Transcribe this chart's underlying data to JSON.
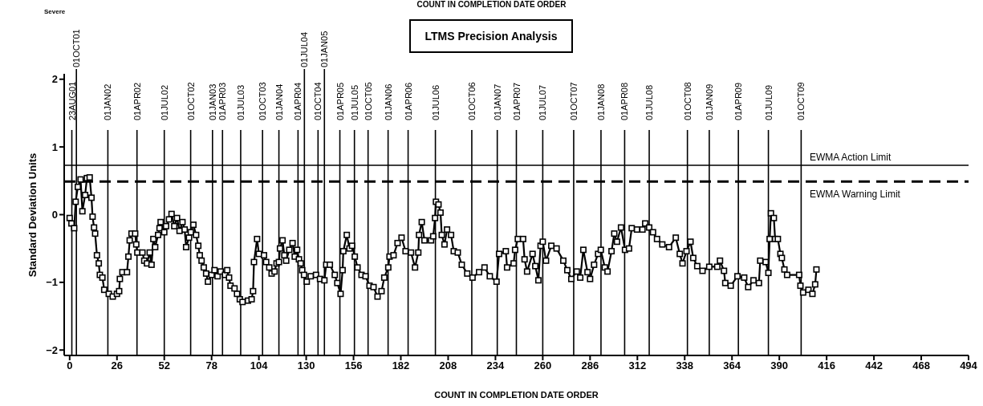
{
  "chart_data": {
    "type": "line",
    "title": "LTMS Precision Analysis",
    "xlabel": "COUNT IN COMPLETION DATE ORDER",
    "ylabel": "Standard Deviation Units",
    "annotations": [
      "Severe",
      "COUNT IN COMPLETION DATE ORDER"
    ],
    "xlim": [
      -3,
      494
    ],
    "xticks": [
      0,
      26,
      52,
      78,
      104,
      130,
      156,
      182,
      208,
      234,
      260,
      286,
      312,
      338,
      364,
      390,
      416,
      442,
      468,
      494
    ],
    "ylim": [
      -2.08,
      2.08
    ],
    "yticks": [
      -2,
      -1,
      0,
      1,
      2
    ],
    "grid": false,
    "legend": false,
    "marker": "square",
    "line_style": "solid",
    "series": [
      {
        "color": "#000000",
        "x": [
          0,
          1,
          2.5,
          3.3,
          4.5,
          6,
          7,
          8.5,
          9.5,
          11,
          12,
          12.6,
          13.4,
          14,
          15,
          16,
          16.6,
          18,
          19,
          21.5,
          23.7,
          26,
          27.2,
          27.6,
          29,
          31.5,
          32.3,
          33,
          34,
          36,
          36.6,
          37.2,
          40,
          41,
          42.5,
          44,
          45,
          46,
          47,
          48.6,
          49.4,
          50,
          52,
          53,
          54.6,
          56,
          57.5,
          59,
          60.4,
          62,
          63.2,
          64,
          65.6,
          66.6,
          68,
          69.5,
          70.7,
          71.5,
          72.5,
          73.7,
          75,
          76,
          78,
          79.6,
          81.3,
          83,
          85.4,
          86.6,
          87.6,
          88.4,
          90.6,
          92,
          93.5,
          95,
          98,
          100,
          100.8,
          101.3,
          103,
          104,
          106.8,
          108,
          109.7,
          111,
          112.6,
          113.7,
          115,
          115.6,
          117,
          118,
          119,
          120.7,
          122.5,
          123.7,
          125,
          126,
          127,
          127.8,
          128.8,
          130.3,
          132.5,
          135.4,
          137.6,
          140,
          141,
          143,
          145.7,
          147.1,
          148.9,
          150,
          150.4,
          152.3,
          153.8,
          155.2,
          156.7,
          158.2,
          160.4,
          162.6,
          164.8,
          167,
          169.2,
          171.4,
          172.9,
          175.1,
          175.8,
          178,
          180.2,
          182.4,
          184.6,
          187.6,
          189.8,
          191.6,
          192,
          193.5,
          195,
          198.6,
          199.8,
          200.8,
          201.3,
          202.7,
          203.8,
          204.5,
          206,
          207.4,
          209.6,
          211.1,
          213.3,
          215.5,
          218.5,
          221.4,
          225,
          228,
          230.9,
          234.6,
          236,
          239.7,
          240.4,
          244,
          244.8,
          246.3,
          249.2,
          250,
          251.4,
          254.4,
          255.9,
          257.6,
          258.8,
          260,
          261.8,
          264.7,
          267.6,
          271.3,
          273.5,
          275.7,
          278.7,
          280.6,
          282.3,
          284.6,
          286,
          288.2,
          290.4,
          291.9,
          294.1,
          295.6,
          297.8,
          299.3,
          300.8,
          303,
          305.2,
          307.4,
          308.9,
          311.8,
          314.8,
          316.3,
          318.5,
          320.6,
          322.8,
          325.7,
          329.4,
          333.1,
          335.3,
          336.8,
          339,
          341.2,
          342.7,
          344.9,
          347.8,
          351.5,
          355.9,
          357.4,
          359.6,
          360.3,
          363.3,
          367,
          370.7,
          372.9,
          375.8,
          378.8,
          379.5,
          382.5,
          384,
          384.7,
          385.4,
          387,
          387.7,
          389.2,
          390.6,
          391.4,
          392.8,
          394.3,
          400.9,
          401.6,
          403.1,
          406,
          408.2,
          409.7,
          410.4
        ],
        "values": [
          -0.05,
          -0.13,
          -0.2,
          0.19,
          0.41,
          0.52,
          0.05,
          0.29,
          0.54,
          0.55,
          0.25,
          -0.03,
          -0.19,
          -0.28,
          -0.6,
          -0.72,
          -0.89,
          -0.93,
          -1.11,
          -1.17,
          -1.21,
          -1.17,
          -1.13,
          -0.95,
          -0.85,
          -0.85,
          -0.62,
          -0.38,
          -0.28,
          -0.28,
          -0.44,
          -0.56,
          -0.56,
          -0.68,
          -0.72,
          -0.56,
          -0.74,
          -0.36,
          -0.48,
          -0.3,
          -0.2,
          -0.11,
          -0.26,
          -0.17,
          -0.07,
          0.01,
          -0.17,
          -0.05,
          -0.24,
          -0.11,
          -0.22,
          -0.48,
          -0.34,
          -0.26,
          -0.15,
          -0.3,
          -0.46,
          -0.6,
          -0.68,
          -0.78,
          -0.87,
          -0.99,
          -0.89,
          -0.82,
          -0.91,
          -0.84,
          -0.89,
          -0.82,
          -0.93,
          -1.05,
          -1.09,
          -1.17,
          -1.25,
          -1.29,
          -1.27,
          -1.25,
          -1.13,
          -0.7,
          -0.36,
          -0.58,
          -0.6,
          -0.7,
          -0.78,
          -0.87,
          -0.84,
          -0.72,
          -0.7,
          -0.5,
          -0.38,
          -0.6,
          -0.68,
          -0.52,
          -0.42,
          -0.62,
          -0.52,
          -0.66,
          -0.72,
          -0.82,
          -0.89,
          -0.99,
          -0.91,
          -0.89,
          -0.95,
          -0.97,
          -0.74,
          -0.74,
          -0.89,
          -1.01,
          -1.17,
          -0.82,
          -0.54,
          -0.3,
          -0.5,
          -0.46,
          -0.62,
          -0.78,
          -0.89,
          -0.91,
          -1.05,
          -1.07,
          -1.21,
          -1.13,
          -0.93,
          -0.78,
          -0.62,
          -0.6,
          -0.42,
          -0.34,
          -0.54,
          -0.56,
          -0.78,
          -0.56,
          -0.3,
          -0.11,
          -0.38,
          -0.38,
          -0.32,
          -0.05,
          0.19,
          0.15,
          0.03,
          -0.3,
          -0.44,
          -0.22,
          -0.3,
          -0.54,
          -0.56,
          -0.74,
          -0.87,
          -0.93,
          -0.85,
          -0.78,
          -0.91,
          -0.99,
          -0.58,
          -0.54,
          -0.78,
          -0.72,
          -0.52,
          -0.36,
          -0.36,
          -0.66,
          -0.84,
          -0.58,
          -0.76,
          -0.97,
          -0.46,
          -0.4,
          -0.68,
          -0.46,
          -0.5,
          -0.68,
          -0.82,
          -0.95,
          -0.84,
          -0.93,
          -0.52,
          -0.85,
          -0.95,
          -0.74,
          -0.58,
          -0.52,
          -0.78,
          -0.84,
          -0.54,
          -0.28,
          -0.4,
          -0.19,
          -0.52,
          -0.5,
          -0.2,
          -0.22,
          -0.22,
          -0.13,
          -0.19,
          -0.26,
          -0.36,
          -0.44,
          -0.48,
          -0.34,
          -0.58,
          -0.72,
          -0.54,
          -0.4,
          -0.64,
          -0.76,
          -0.83,
          -0.77,
          -0.77,
          -0.68,
          -0.83,
          -1.01,
          -1.05,
          -0.91,
          -0.93,
          -1.07,
          -0.97,
          -1.01,
          -0.68,
          -0.7,
          -0.86,
          -0.36,
          0.02,
          -0.05,
          -0.36,
          -0.36,
          -0.58,
          -0.64,
          -0.81,
          -0.89,
          -0.89,
          -1.05,
          -1.15,
          -1.11,
          -1.17,
          -1.03,
          -0.81
        ]
      }
    ],
    "ref_lines": [
      {
        "axis": "y",
        "value": 0.73,
        "label": "EWMA Action Limit",
        "line_style": "solid",
        "color": "#000000"
      },
      {
        "axis": "y",
        "value": 0.49,
        "label": "EWMA Warning Limit",
        "line_style": "dashed",
        "color": "#000000"
      },
      {
        "axis": "x",
        "value": 1.2,
        "label": "23AUG01"
      },
      {
        "axis": "x",
        "value": 3.7,
        "label": "01OCT01"
      },
      {
        "axis": "x",
        "value": 21,
        "label": "01JAN02"
      },
      {
        "axis": "x",
        "value": 37,
        "label": "01APR02"
      },
      {
        "axis": "x",
        "value": 52,
        "label": "01JUL02"
      },
      {
        "axis": "x",
        "value": 66.5,
        "label": "01OCT02"
      },
      {
        "axis": "x",
        "value": 78.5,
        "label": "01JAN03"
      },
      {
        "axis": "x",
        "value": 84,
        "label": "01APR03"
      },
      {
        "axis": "x",
        "value": 94,
        "label": "01JUL03"
      },
      {
        "axis": "x",
        "value": 106,
        "label": "01OCT03"
      },
      {
        "axis": "x",
        "value": 115,
        "label": "01JAN04"
      },
      {
        "axis": "x",
        "value": 125.5,
        "label": "01APR04"
      },
      {
        "axis": "x",
        "value": 129,
        "label": "01JUL04"
      },
      {
        "axis": "x",
        "value": 136.5,
        "label": "01OCT04"
      },
      {
        "axis": "x",
        "value": 140,
        "label": "01JAN05"
      },
      {
        "axis": "x",
        "value": 148.5,
        "label": "01APR05"
      },
      {
        "axis": "x",
        "value": 156.5,
        "label": "01JUL05"
      },
      {
        "axis": "x",
        "value": 164,
        "label": "01OCT05"
      },
      {
        "axis": "x",
        "value": 175,
        "label": "01JAN06"
      },
      {
        "axis": "x",
        "value": 186,
        "label": "01APR06"
      },
      {
        "axis": "x",
        "value": 201,
        "label": "01JUL06"
      },
      {
        "axis": "x",
        "value": 221,
        "label": "01OCT06"
      },
      {
        "axis": "x",
        "value": 235,
        "label": "01JAN07"
      },
      {
        "axis": "x",
        "value": 245.5,
        "label": "01APR07"
      },
      {
        "axis": "x",
        "value": 260,
        "label": "01JUL07"
      },
      {
        "axis": "x",
        "value": 277,
        "label": "01OCT07"
      },
      {
        "axis": "x",
        "value": 292,
        "label": "01JAN08"
      },
      {
        "axis": "x",
        "value": 305,
        "label": "01APR08"
      },
      {
        "axis": "x",
        "value": 318.5,
        "label": "01JUL08"
      },
      {
        "axis": "x",
        "value": 339.5,
        "label": "01OCT08"
      },
      {
        "axis": "x",
        "value": 351.5,
        "label": "01JAN09"
      },
      {
        "axis": "x",
        "value": 367.5,
        "label": "01APR09"
      },
      {
        "axis": "x",
        "value": 384,
        "label": "01JUL09"
      },
      {
        "axis": "x",
        "value": 402,
        "label": "01OCT09"
      }
    ]
  }
}
